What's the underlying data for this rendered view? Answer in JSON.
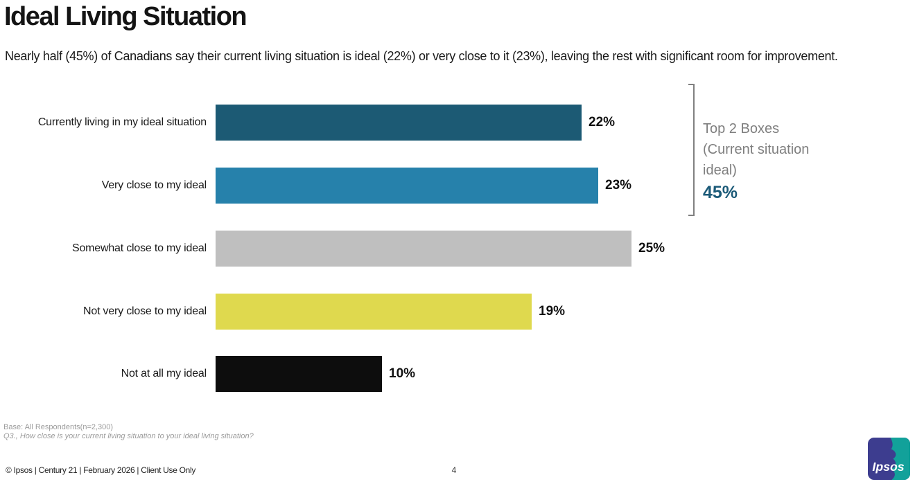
{
  "slide": {
    "title": "Ideal Living Situation",
    "subtitle": "Nearly half (45%) of Canadians say their current living situation is ideal (22%) or very close to it (23%), leaving the rest with significant room for improvement.",
    "page_number": "4",
    "footer": {
      "base": "Base: All Respondents(n=2,300)",
      "question": "Q3., How close is your current living situation to your ideal living situation?",
      "copyright": "© Ipsos | Century 21 | February 2026 | Client Use Only"
    },
    "logo_text": "Ipsos",
    "logo_colors": {
      "indigo": "#3D3D8F",
      "teal": "#12A19A"
    }
  },
  "top2": {
    "line1": "Top 2 Boxes",
    "line2": "(Current situation",
    "line3": " ideal)",
    "value": "45%",
    "value_color": "#1B5A78",
    "bracket_color": "#808080"
  },
  "chart_data": {
    "type": "bar",
    "orientation": "horizontal",
    "title": "Ideal Living Situation",
    "unit": "%",
    "categories": [
      "Currently living in my ideal situation",
      "Very close to my ideal",
      "Somewhat close to my ideal",
      "Not very close to my ideal",
      "Not at all my ideal"
    ],
    "values": [
      22,
      23,
      25,
      19,
      10
    ],
    "value_labels": [
      "22%",
      "23%",
      "25%",
      "19%",
      "10%"
    ],
    "colors": [
      "#1C5A74",
      "#2681AB",
      "#BFBFBF",
      "#DFD94E",
      "#0D0D0D"
    ],
    "xlim": [
      0,
      25
    ],
    "grid": false,
    "legend": "none",
    "annotation": "Top 2 Boxes (Current situation ideal) 45%"
  }
}
